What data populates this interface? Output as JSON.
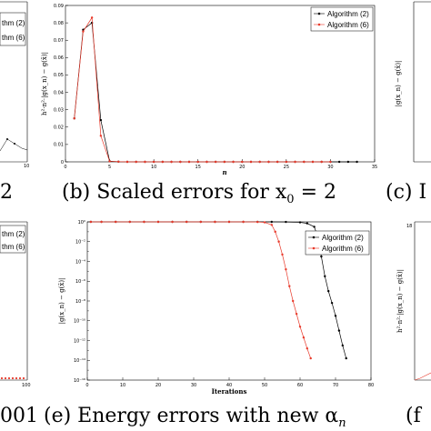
{
  "captions": {
    "left_top": "2",
    "middle_top": "(b) Scaled errors for x",
    "middle_top_sub": "0",
    "middle_top_tail": " = 2",
    "right_top": "(c) I",
    "left_bottom": "001",
    "middle_bottom": "(e) Energy errors with new α",
    "middle_bottom_sub": "n",
    "right_bottom": "(f"
  },
  "partial_panels": {
    "top_left": {
      "xtick": "10",
      "legend": [
        "thm (2)",
        "thm (6)"
      ]
    },
    "top_right": {
      "ylabel": "|g(x_n) − g(x̄)|"
    },
    "bottom_left": {
      "xtick": "100",
      "legend": [
        "thm (2)",
        "thm (6)"
      ]
    },
    "bottom_right": {
      "ylabel": "h²·n²·|g(x_n) − g(x̄)|",
      "ytop": "18"
    }
  },
  "chart_data": [
    {
      "type": "line",
      "panel": "b",
      "xlabel": "n",
      "ylabel": "h²·n²·|g(x_n) − g(x̄)|",
      "xlim": [
        0,
        35
      ],
      "ylim": [
        0,
        0.09
      ],
      "xticks": [
        "0",
        "5",
        "10",
        "15",
        "20",
        "25",
        "30",
        "35"
      ],
      "yticks": [
        "0",
        "0.01",
        "0.02",
        "0.03",
        "0.04",
        "0.05",
        "0.06",
        "0.07",
        "0.08",
        "0.09"
      ],
      "legend_position": "top-right",
      "series": [
        {
          "name": "Algorithm (2)",
          "color": "#000000",
          "x": [
            1,
            2,
            3,
            4,
            5,
            6,
            7,
            8,
            9,
            10,
            11,
            12,
            13,
            14,
            15,
            16,
            17,
            18,
            19,
            20,
            21,
            22,
            23,
            24,
            25,
            26,
            27,
            28,
            29,
            30,
            31,
            32,
            33
          ],
          "y": [
            0.025,
            0.076,
            0.08,
            0.024,
            0.0004,
            0.0001,
            0,
            0,
            0,
            0,
            0,
            0,
            0,
            0,
            0,
            0,
            0,
            0,
            0,
            0,
            0,
            0,
            0,
            0,
            0,
            0,
            0,
            0,
            0,
            0,
            0,
            0,
            0
          ]
        },
        {
          "name": "Algorithm (6)",
          "color": "#e8392a",
          "x": [
            1,
            2,
            3,
            4,
            5,
            6,
            7,
            8,
            9,
            10,
            11,
            12,
            13,
            14,
            15,
            16,
            17,
            18,
            19,
            20,
            21,
            22,
            23,
            24,
            25,
            26,
            27,
            28,
            29,
            30
          ],
          "y": [
            0.025,
            0.075,
            0.083,
            0.015,
            0.0003,
            0.0001,
            0,
            0,
            0,
            0,
            0,
            0,
            0,
            0,
            0,
            0,
            0,
            0,
            0,
            0,
            0,
            0,
            0,
            0,
            0,
            0,
            0,
            0,
            0,
            0
          ]
        }
      ]
    },
    {
      "type": "line",
      "panel": "e",
      "xlabel": "Iterations",
      "ylabel": "|g(x_n) − g(x̄)|",
      "yscale": "log",
      "xlim": [
        0,
        80
      ],
      "ylim_exp": [
        -16,
        0
      ],
      "xticks": [
        "0",
        "10",
        "20",
        "30",
        "40",
        "50",
        "60",
        "70",
        "80"
      ],
      "yticks": [
        "10⁰",
        "10⁻²",
        "10⁻⁴",
        "10⁻⁶",
        "10⁻⁸",
        "10⁻¹⁰",
        "10⁻¹²",
        "10⁻¹⁴",
        "10⁻¹⁶"
      ],
      "legend_position": "top-right",
      "series": [
        {
          "name": "Algorithm (2)",
          "color": "#000000",
          "x": [
            1,
            4,
            8,
            12,
            16,
            20,
            24,
            28,
            32,
            36,
            40,
            44,
            48,
            52,
            56,
            60,
            62,
            64,
            65,
            66,
            67,
            68,
            69,
            70,
            71,
            72,
            73
          ],
          "log10_y": [
            0,
            0,
            0,
            0,
            0,
            0,
            0,
            0,
            0,
            0,
            0,
            0,
            0,
            0,
            -0.01,
            -0.05,
            -0.15,
            -0.5,
            -1.5,
            -3.5,
            -5.5,
            -7,
            -8.2,
            -9.5,
            -11,
            -12.5,
            -13.8
          ]
        },
        {
          "name": "Algorithm (6)",
          "color": "#e8392a",
          "x": [
            1,
            4,
            8,
            12,
            16,
            20,
            24,
            28,
            32,
            36,
            40,
            44,
            48,
            50,
            52,
            53,
            54,
            55,
            56,
            57,
            58,
            59,
            60,
            61,
            62,
            63
          ],
          "log10_y": [
            0,
            0,
            0,
            0,
            0,
            0,
            0,
            0,
            0,
            0,
            0,
            0,
            -0.01,
            -0.05,
            -0.3,
            -1,
            -2,
            -3.3,
            -4.8,
            -6.5,
            -8,
            -9.3,
            -10.6,
            -11.7,
            -12.8,
            -13.8
          ]
        }
      ]
    }
  ]
}
